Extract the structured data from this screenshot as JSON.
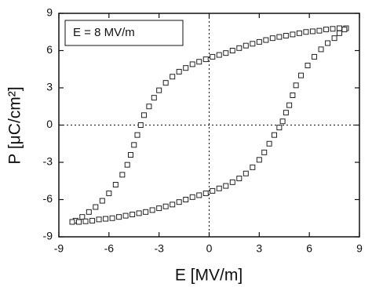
{
  "chart_data": {
    "type": "scatter",
    "annotation": "E = 8 MV/m",
    "xlabel": "E [MV/m]",
    "ylabel": "P [μC/cm²]",
    "x": [
      8.2,
      7.8,
      7.4,
      7.0,
      6.6,
      6.2,
      5.8,
      5.4,
      5.0,
      4.6,
      4.2,
      3.8,
      3.4,
      3.0,
      2.6,
      2.2,
      1.8,
      1.4,
      1.0,
      0.6,
      0.2,
      -0.2,
      -0.6,
      -1.0,
      -1.4,
      -1.8,
      -2.2,
      -2.6,
      -3.0,
      -3.3,
      -3.6,
      -3.9,
      -4.1,
      -4.3,
      -4.5,
      -4.7,
      -4.9,
      -5.2,
      -5.6,
      -6.0,
      -6.4,
      -6.8,
      -7.2,
      -7.6,
      -8.0,
      -8.2,
      -7.8,
      -7.4,
      -7.0,
      -6.6,
      -6.2,
      -5.8,
      -5.4,
      -5.0,
      -4.6,
      -4.2,
      -3.8,
      -3.4,
      -3.0,
      -2.6,
      -2.2,
      -1.8,
      -1.4,
      -1.0,
      -0.6,
      -0.2,
      0.2,
      0.6,
      1.0,
      1.4,
      1.8,
      2.2,
      2.6,
      3.0,
      3.3,
      3.6,
      3.9,
      4.2,
      4.4,
      4.6,
      4.8,
      5.0,
      5.2,
      5.5,
      5.9,
      6.3,
      6.7,
      7.1,
      7.5,
      7.8,
      8.1
    ],
    "values": [
      7.8,
      7.8,
      7.75,
      7.7,
      7.6,
      7.55,
      7.5,
      7.4,
      7.3,
      7.2,
      7.1,
      7.0,
      6.85,
      6.7,
      6.55,
      6.4,
      6.2,
      6.0,
      5.8,
      5.65,
      5.5,
      5.3,
      5.1,
      4.9,
      4.6,
      4.3,
      3.9,
      3.4,
      2.8,
      2.2,
      1.5,
      0.8,
      0,
      -0.8,
      -1.6,
      -2.4,
      -3.2,
      -4.0,
      -4.8,
      -5.5,
      -6.1,
      -6.6,
      -7.0,
      -7.4,
      -7.7,
      -7.8,
      -7.8,
      -7.75,
      -7.7,
      -7.6,
      -7.55,
      -7.5,
      -7.4,
      -7.3,
      -7.2,
      -7.1,
      -7.0,
      -6.85,
      -6.7,
      -6.55,
      -6.4,
      -6.2,
      -6.0,
      -5.8,
      -5.65,
      -5.5,
      -5.3,
      -5.1,
      -4.9,
      -4.6,
      -4.3,
      -3.9,
      -3.4,
      -2.8,
      -2.2,
      -1.5,
      -0.8,
      -0.2,
      0.3,
      1.0,
      1.6,
      2.4,
      3.2,
      4.0,
      4.8,
      5.5,
      6.1,
      6.6,
      7.0,
      7.4,
      7.7
    ],
    "marker_color": "#222222",
    "zero_lines": true,
    "xlim": [
      -9,
      9
    ],
    "xticks": [
      -9,
      -6,
      -3,
      0,
      3,
      6,
      9
    ],
    "ylim": [
      -9,
      9
    ],
    "yticks": [
      -9,
      -6,
      -3,
      0,
      3,
      6,
      9
    ]
  }
}
